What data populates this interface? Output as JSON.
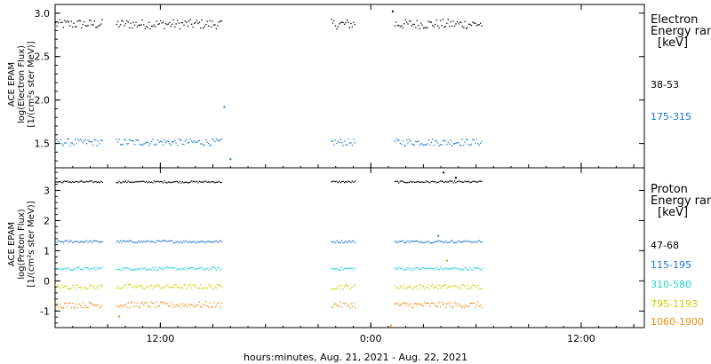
{
  "x_title": "hours:minutes, Aug. 21, 2021 - Aug. 22, 2021",
  "chart_data": [
    {
      "type": "scatter",
      "panel": "electron",
      "ylabel_lines": [
        "ACE EPAM",
        "log(Electron Flux)",
        "[1/(cm²s ster MeV)]"
      ],
      "ylim": [
        1.22,
        3.1
      ],
      "yticks": [
        "1.5",
        "2.0",
        "2.5",
        "3.0"
      ],
      "ytick_values": [
        1.5,
        2.0,
        2.5,
        3.0
      ],
      "xlim_hours": [
        6,
        32
      ],
      "xticks": [
        "12:00",
        "0:00",
        "12:00"
      ],
      "xtick_hours": [
        12,
        24,
        36
      ],
      "legend_title_lines": [
        "Electron",
        "Energy range",
        "[keV]"
      ],
      "gaps_hours": [
        [
          8.7,
          9.4
        ],
        [
          15.5,
          21.7
        ],
        [
          23.1,
          25.3
        ]
      ],
      "series": [
        {
          "name": "38-53",
          "color": "#000000",
          "base": 2.88,
          "noise": 0.055,
          "x_start": 6,
          "x_end": 30.3
        },
        {
          "name": "175-315",
          "color": "#1a77d6",
          "base": 1.52,
          "noise": 0.04,
          "x_start": 6,
          "x_end": 30.3
        }
      ],
      "outliers": [
        {
          "x": 15.6,
          "y": 1.93,
          "color": "#1a77d6"
        },
        {
          "x": 15.95,
          "y": 1.33,
          "color": "#1a77d6"
        },
        {
          "x": 25.2,
          "y": 3.03,
          "color": "#000000"
        }
      ]
    },
    {
      "type": "scatter",
      "panel": "proton",
      "ylabel_lines": [
        "ACE EPAM",
        "log(Proton Flux)",
        "[1/(cm²s ster MeV)]"
      ],
      "ylim": [
        -1.55,
        3.75
      ],
      "yticks": [
        "-1",
        "0",
        "1",
        "2",
        "3"
      ],
      "ytick_values": [
        -1,
        0,
        1,
        2,
        3
      ],
      "xlim_hours": [
        6,
        32
      ],
      "xticks": [
        "12:00",
        "0:00",
        "12:00"
      ],
      "xtick_hours": [
        12,
        24,
        36
      ],
      "legend_title_lines": [
        "Proton",
        "Energy range",
        "[keV]"
      ],
      "gaps_hours": [
        [
          8.7,
          9.4
        ],
        [
          15.5,
          21.7
        ],
        [
          23.1,
          25.3
        ]
      ],
      "series": [
        {
          "name": "47-68",
          "color": "#000000",
          "base": 3.3,
          "noise": 0.03,
          "x_start": 6,
          "x_end": 30.3
        },
        {
          "name": "115-195",
          "color": "#1a77d6",
          "base": 1.32,
          "noise": 0.04,
          "x_start": 6,
          "x_end": 30.3
        },
        {
          "name": "310-580",
          "color": "#22d3d3",
          "base": 0.42,
          "noise": 0.05,
          "x_start": 6,
          "x_end": 30.3
        },
        {
          "name": "795-1193",
          "color": "#c8d200",
          "base": -0.18,
          "noise": 0.08,
          "x_start": 6,
          "x_end": 30.3
        },
        {
          "name": "1060-1900",
          "color": "#ee8a10",
          "base": -0.78,
          "noise": 0.1,
          "x_start": 6,
          "x_end": 30.3
        }
      ],
      "outliers": [
        {
          "x": 28.1,
          "y": 3.62,
          "color": "#000000"
        },
        {
          "x": 28.8,
          "y": 3.45,
          "color": "#000000"
        },
        {
          "x": 27.8,
          "y": 1.52,
          "color": "#1a77d6"
        },
        {
          "x": 28.3,
          "y": 0.7,
          "color": "#ee8a10"
        },
        {
          "x": 25.1,
          "y": -1.45,
          "color": "#ee8a10"
        },
        {
          "x": 9.6,
          "y": -1.15,
          "color": "#ee8a10"
        }
      ]
    }
  ]
}
